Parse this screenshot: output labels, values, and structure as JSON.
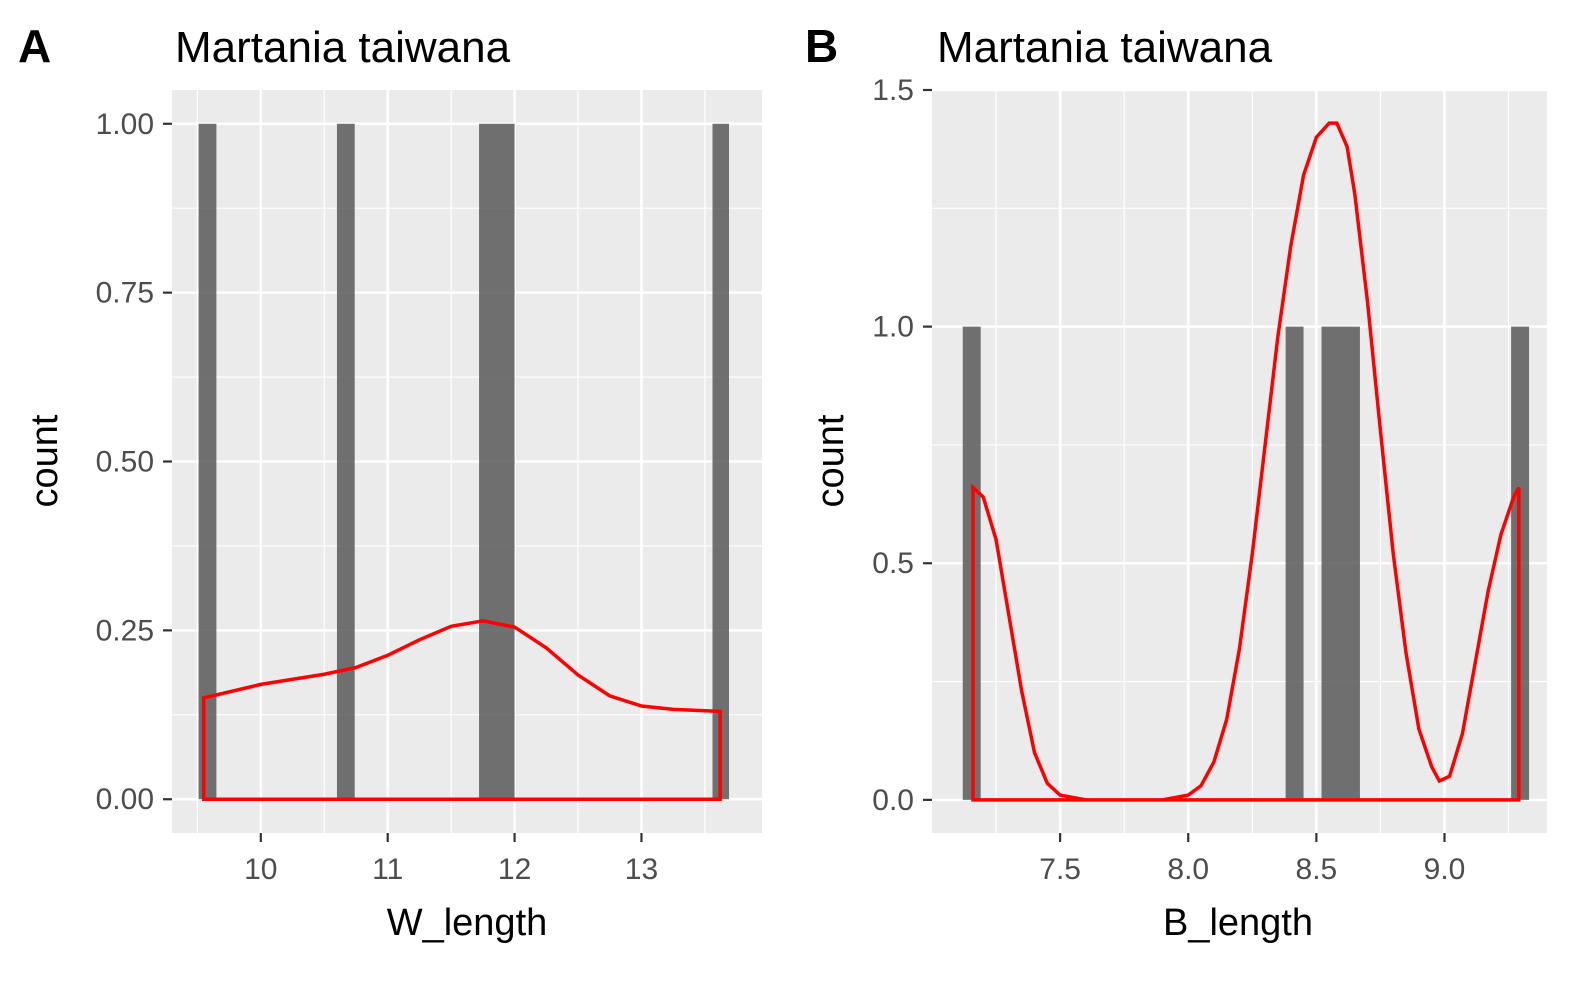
{
  "chart_data": [
    {
      "panel": "A",
      "type": "bar",
      "title": "Martania taiwana",
      "xlabel": "W_length",
      "ylabel": "count",
      "xlim": [
        9.3,
        13.95
      ],
      "ylim": [
        -0.05,
        1.05
      ],
      "x_ticks": [
        10,
        11,
        12,
        13
      ],
      "y_ticks": [
        0.0,
        0.25,
        0.5,
        0.75,
        1.0
      ],
      "x_tick_labels": [
        "10",
        "11",
        "12",
        "13"
      ],
      "y_tick_labels": [
        "0.00",
        "0.25",
        "0.50",
        "0.75",
        "1.00"
      ],
      "bars": [
        {
          "x0": 9.51,
          "x1": 9.65,
          "value": 1
        },
        {
          "x0": 10.6,
          "x1": 10.74,
          "value": 1
        },
        {
          "x0": 11.72,
          "x1": 12.0,
          "value": 1
        },
        {
          "x0": 13.56,
          "x1": 13.69,
          "value": 1
        }
      ],
      "density": {
        "x": [
          9.55,
          10.0,
          10.5,
          10.75,
          11.0,
          11.25,
          11.5,
          11.75,
          12.0,
          12.25,
          12.5,
          12.75,
          13.0,
          13.25,
          13.5,
          13.62
        ],
        "y": [
          0.15,
          0.17,
          0.185,
          0.195,
          0.213,
          0.236,
          0.256,
          0.264,
          0.255,
          0.224,
          0.184,
          0.153,
          0.138,
          0.133,
          0.131,
          0.13
        ],
        "color": "#ff0000"
      },
      "grid": true,
      "panel_bg": "#ebebeb",
      "bar_color": "#595959"
    },
    {
      "panel": "B",
      "type": "bar",
      "title": "Martania taiwana",
      "xlabel": "B_length",
      "ylabel": "count",
      "xlim": [
        7.0,
        9.4
      ],
      "ylim": [
        -0.07,
        1.5
      ],
      "x_ticks": [
        7.5,
        8.0,
        8.5,
        9.0
      ],
      "y_ticks": [
        0.0,
        0.5,
        1.0,
        1.5
      ],
      "x_tick_labels": [
        "7.5",
        "8.0",
        "8.5",
        "9.0"
      ],
      "y_tick_labels": [
        "0.0",
        "0.5",
        "1.0",
        "1.5"
      ],
      "bars": [
        {
          "x0": 7.12,
          "x1": 7.19,
          "value": 1
        },
        {
          "x0": 8.38,
          "x1": 8.45,
          "value": 1
        },
        {
          "x0": 8.52,
          "x1": 8.67,
          "value": 1
        },
        {
          "x0": 9.26,
          "x1": 9.33,
          "value": 1
        }
      ],
      "density": {
        "x": [
          7.16,
          7.2,
          7.25,
          7.3,
          7.35,
          7.4,
          7.45,
          7.5,
          7.6,
          7.7,
          7.8,
          7.9,
          8.0,
          8.05,
          8.1,
          8.15,
          8.2,
          8.25,
          8.3,
          8.35,
          8.4,
          8.45,
          8.5,
          8.55,
          8.58,
          8.62,
          8.65,
          8.7,
          8.75,
          8.8,
          8.85,
          8.9,
          8.95,
          8.98,
          9.02,
          9.07,
          9.12,
          9.17,
          9.22,
          9.27,
          9.29
        ],
        "y": [
          0.66,
          0.64,
          0.55,
          0.39,
          0.23,
          0.1,
          0.035,
          0.01,
          0.0,
          0.0,
          0.0,
          0.0,
          0.01,
          0.03,
          0.08,
          0.17,
          0.32,
          0.52,
          0.75,
          0.98,
          1.17,
          1.32,
          1.4,
          1.43,
          1.43,
          1.38,
          1.28,
          1.05,
          0.78,
          0.52,
          0.31,
          0.15,
          0.07,
          0.04,
          0.05,
          0.14,
          0.29,
          0.44,
          0.56,
          0.64,
          0.66
        ],
        "color": "#ff0000"
      },
      "grid": true,
      "panel_bg": "#ebebeb",
      "bar_color": "#595959"
    }
  ]
}
